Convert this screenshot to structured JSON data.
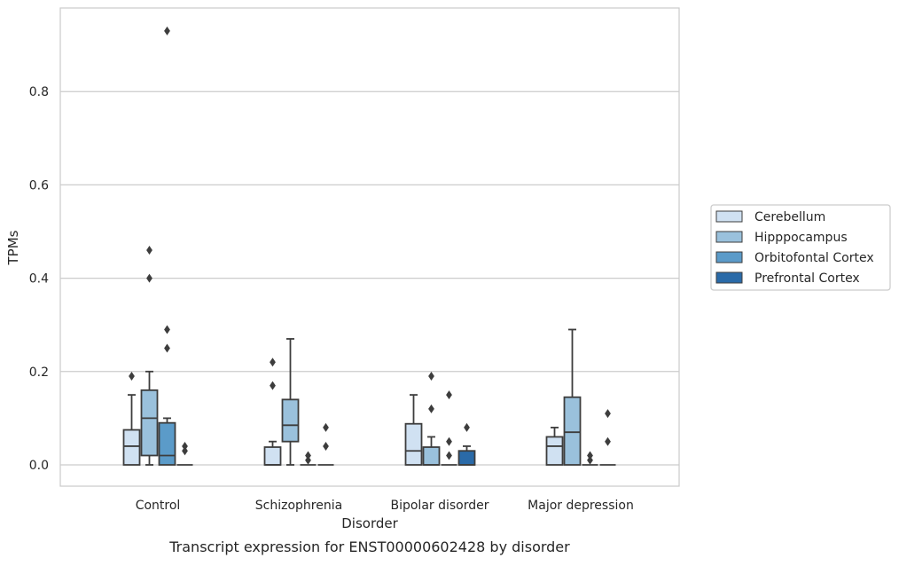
{
  "chart_data": {
    "type": "box",
    "title": "",
    "caption": "Transcript expression for ENST00000602428 by disorder",
    "xlabel": "Disorder",
    "ylabel": "TPMs",
    "ylim": [
      -0.045,
      0.98
    ],
    "yticks": [
      {
        "value": 0.0,
        "label": "0.0"
      },
      {
        "value": 0.2,
        "label": "0.2"
      },
      {
        "value": 0.4,
        "label": "0.4"
      },
      {
        "value": 0.6,
        "label": "0.6"
      },
      {
        "value": 0.8,
        "label": "0.8"
      }
    ],
    "grid": "y",
    "legend_position": "right",
    "categories": [
      "Control",
      "Schizophrenia",
      "Bipolar disorder",
      "Major depression"
    ],
    "series": [
      {
        "name": "Cerebellum",
        "color": "#d0e1f2",
        "boxes": [
          {
            "category": "Control",
            "whisker_low": 0.0,
            "q1": 0.0,
            "median": 0.04,
            "q3": 0.075,
            "whisker_high": 0.15,
            "outliers": [
              0.19
            ]
          },
          {
            "category": "Schizophrenia",
            "whisker_low": 0.0,
            "q1": 0.0,
            "median": 0.0,
            "q3": 0.038,
            "whisker_high": 0.05,
            "outliers": [
              0.17,
              0.22
            ]
          },
          {
            "category": "Bipolar disorder",
            "whisker_low": 0.0,
            "q1": 0.0,
            "median": 0.03,
            "q3": 0.088,
            "whisker_high": 0.15,
            "outliers": []
          },
          {
            "category": "Major depression",
            "whisker_low": 0.0,
            "q1": 0.0,
            "median": 0.04,
            "q3": 0.06,
            "whisker_high": 0.08,
            "outliers": []
          }
        ]
      },
      {
        "name": "Hipppocampus",
        "color": "#9ac1dc",
        "boxes": [
          {
            "category": "Control",
            "whisker_low": 0.0,
            "q1": 0.02,
            "median": 0.1,
            "q3": 0.16,
            "whisker_high": 0.2,
            "outliers": [
              0.4,
              0.46
            ]
          },
          {
            "category": "Schizophrenia",
            "whisker_low": 0.0,
            "q1": 0.05,
            "median": 0.085,
            "q3": 0.14,
            "whisker_high": 0.27,
            "outliers": []
          },
          {
            "category": "Bipolar disorder",
            "whisker_low": 0.0,
            "q1": 0.0,
            "median": 0.0,
            "q3": 0.038,
            "whisker_high": 0.06,
            "outliers": [
              0.12,
              0.19
            ]
          },
          {
            "category": "Major depression",
            "whisker_low": 0.0,
            "q1": 0.0,
            "median": 0.07,
            "q3": 0.145,
            "whisker_high": 0.29,
            "outliers": []
          }
        ]
      },
      {
        "name": "Orbitofontal Cortex",
        "color": "#5b9bc9",
        "boxes": [
          {
            "category": "Control",
            "whisker_low": 0.0,
            "q1": 0.0,
            "median": 0.02,
            "q3": 0.09,
            "whisker_high": 0.1,
            "outliers": [
              0.25,
              0.29,
              0.93
            ]
          },
          {
            "category": "Schizophrenia",
            "whisker_low": 0.0,
            "q1": 0.0,
            "median": 0.0,
            "q3": 0.0,
            "whisker_high": 0.0,
            "outliers": [
              0.01,
              0.02
            ]
          },
          {
            "category": "Bipolar disorder",
            "whisker_low": 0.0,
            "q1": 0.0,
            "median": 0.0,
            "q3": 0.0,
            "whisker_high": 0.0,
            "outliers": [
              0.02,
              0.05,
              0.15
            ]
          },
          {
            "category": "Major depression",
            "whisker_low": 0.0,
            "q1": 0.0,
            "median": 0.0,
            "q3": 0.0,
            "whisker_high": 0.0,
            "outliers": [
              0.01,
              0.02
            ]
          }
        ]
      },
      {
        "name": "Prefrontal Cortex",
        "color": "#2a6aa8",
        "boxes": [
          {
            "category": "Control",
            "whisker_low": 0.0,
            "q1": 0.0,
            "median": 0.0,
            "q3": 0.0,
            "whisker_high": 0.0,
            "outliers": [
              0.03,
              0.04
            ]
          },
          {
            "category": "Schizophrenia",
            "whisker_low": 0.0,
            "q1": 0.0,
            "median": 0.0,
            "q3": 0.0,
            "whisker_high": 0.0,
            "outliers": [
              0.04,
              0.08
            ]
          },
          {
            "category": "Bipolar disorder",
            "whisker_low": 0.0,
            "q1": 0.0,
            "median": 0.0,
            "q3": 0.03,
            "whisker_high": 0.04,
            "outliers": [
              0.08
            ]
          },
          {
            "category": "Major depression",
            "whisker_low": 0.0,
            "q1": 0.0,
            "median": 0.0,
            "q3": 0.0,
            "whisker_high": 0.0,
            "outliers": [
              0.05,
              0.11
            ]
          }
        ]
      }
    ],
    "colors": {
      "frame": "#cccccc",
      "grid": "#cccccc",
      "box_edge": "#3d3d3d",
      "outlier": "#3d3d3d",
      "text": "#262626"
    }
  }
}
